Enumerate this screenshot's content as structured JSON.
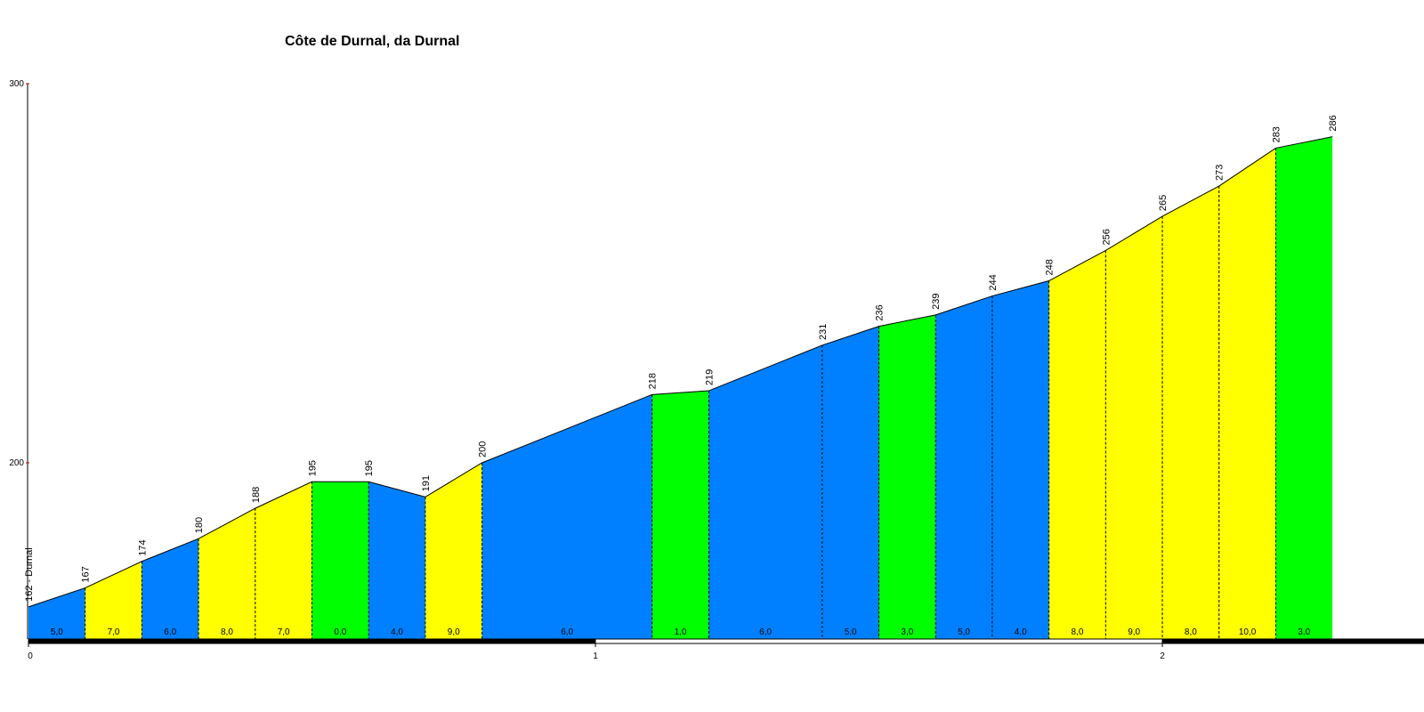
{
  "chart_data": {
    "type": "area",
    "title": "Côte de Durnal, da Durnal",
    "xlabel": "",
    "ylabel": "",
    "x_unit": "km",
    "xlim": [
      0,
      2.42
    ],
    "ylim": [
      152,
      300
    ],
    "y_ticks": [
      "200",
      "300"
    ],
    "x_ticks": [
      "0",
      "1",
      "2"
    ],
    "distance_km": [
      0,
      0.1,
      0.2,
      0.3,
      0.4,
      0.5,
      0.6,
      0.7,
      0.8,
      1.1,
      1.2,
      1.4,
      1.5,
      1.6,
      1.7,
      1.8,
      1.9,
      2.0,
      2.1,
      2.2,
      2.3
    ],
    "elevation_m": [
      162,
      167,
      174,
      180,
      188,
      195,
      195,
      191,
      200,
      218,
      219,
      231,
      236,
      239,
      244,
      248,
      256,
      265,
      273,
      283,
      286
    ],
    "point_labels": [
      "162 - Durnal",
      "167",
      "174",
      "180",
      "188",
      "195",
      "195",
      "191",
      "200",
      "218",
      "219",
      "231",
      "236",
      "239",
      "244",
      "248",
      "256",
      "265",
      "273",
      "283",
      "286"
    ],
    "segment_gradients": [
      "5,0",
      "7,0",
      "6,0",
      "8,0",
      "7,0",
      "0,0",
      "4,0",
      "9,0",
      "6,0",
      "1,0",
      "6,0",
      "5,0",
      "3,0",
      "5,0",
      "4,0",
      "8,0",
      "9,0",
      "8,0",
      "10,0",
      "3,0"
    ],
    "gradient_colors": {
      "0-3": "#00ff00",
      "4-6": "#0080ff",
      "7-10": "#ffff00"
    }
  }
}
